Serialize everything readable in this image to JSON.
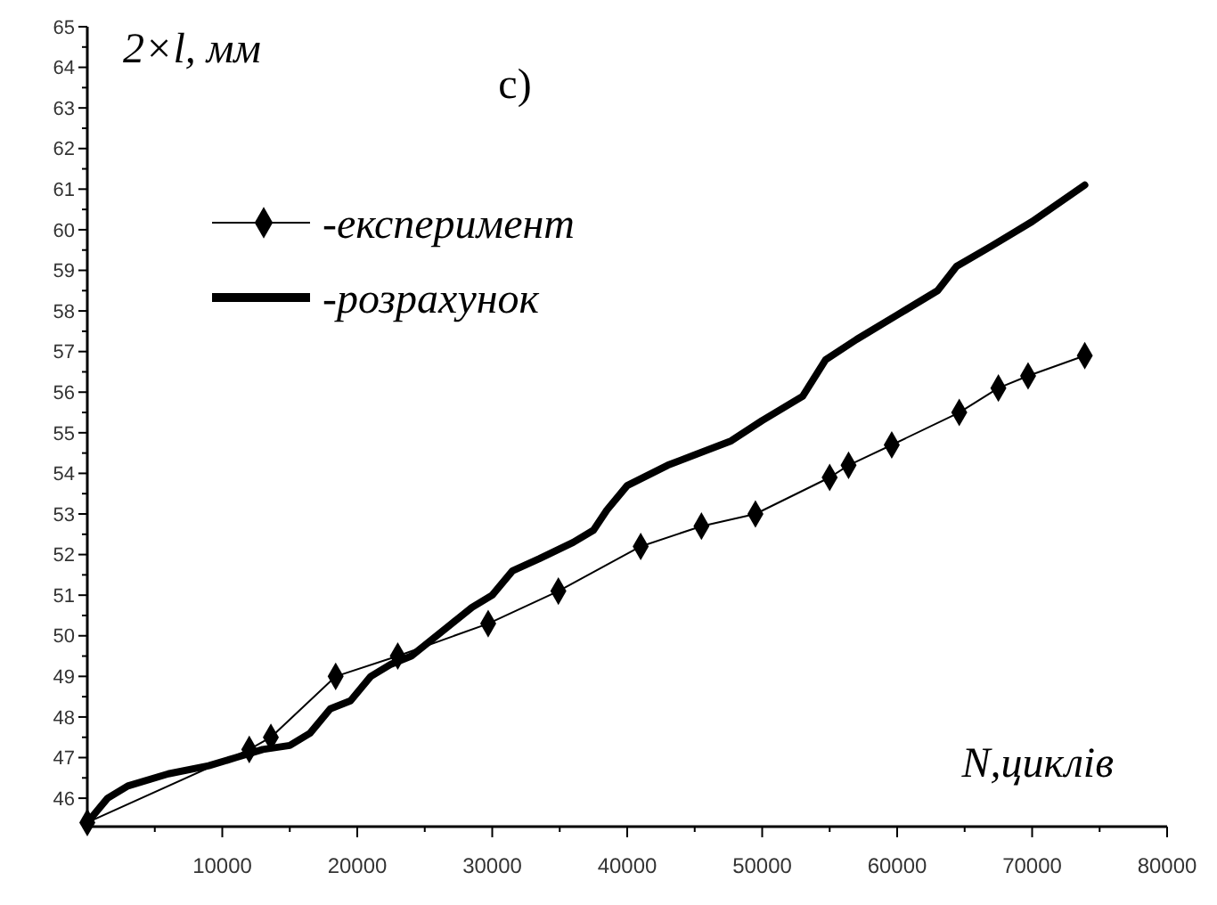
{
  "chart_data": {
    "type": "line",
    "title": "c)",
    "xlabel": "N,циклів",
    "ylabel": "2×l, мм",
    "xlim": [
      0,
      80000
    ],
    "ylim": [
      45.3,
      65
    ],
    "xticks": [
      10000,
      20000,
      30000,
      40000,
      50000,
      60000,
      70000,
      80000
    ],
    "yticks": [
      46,
      47,
      48,
      49,
      50,
      51,
      52,
      53,
      54,
      55,
      56,
      57,
      58,
      59,
      60,
      61,
      62,
      63,
      64,
      65
    ],
    "grid": false,
    "legend": "top left",
    "series": [
      {
        "name": "-експеримент",
        "color": "#000000",
        "marker": "diamond",
        "line_style": "solid",
        "x": [
          0,
          12000,
          13600,
          18400,
          23000,
          29700,
          34900,
          41000,
          45500,
          49500,
          55000,
          56400,
          59600,
          64600,
          67500,
          69700,
          73900
        ],
        "values": [
          45.4,
          47.2,
          47.5,
          49.0,
          49.5,
          50.3,
          51.1,
          52.2,
          52.7,
          53.0,
          53.9,
          54.2,
          54.7,
          55.5,
          56.1,
          56.4,
          56.9
        ]
      },
      {
        "name": "-розрахунок",
        "color": "#000000",
        "marker": "none",
        "line_style": "solid",
        "x": [
          0,
          1500,
          3000,
          6000,
          9000,
          11000,
          13000,
          15000,
          16500,
          18000,
          19500,
          21000,
          22500,
          24000,
          25500,
          27000,
          28500,
          30000,
          31500,
          33500,
          36000,
          37500,
          38500,
          40000,
          43000,
          47700,
          50000,
          53000,
          54700,
          57000,
          60000,
          63000,
          64400,
          67000,
          70000,
          73900
        ],
        "values": [
          45.4,
          46.0,
          46.3,
          46.6,
          46.8,
          47.0,
          47.2,
          47.3,
          47.6,
          48.2,
          48.4,
          49.0,
          49.3,
          49.5,
          49.9,
          50.3,
          50.7,
          51.0,
          51.6,
          51.9,
          52.3,
          52.6,
          53.1,
          53.7,
          54.2,
          54.8,
          55.3,
          55.9,
          56.8,
          57.3,
          57.9,
          58.5,
          59.1,
          59.6,
          60.2,
          61.1
        ]
      }
    ]
  }
}
